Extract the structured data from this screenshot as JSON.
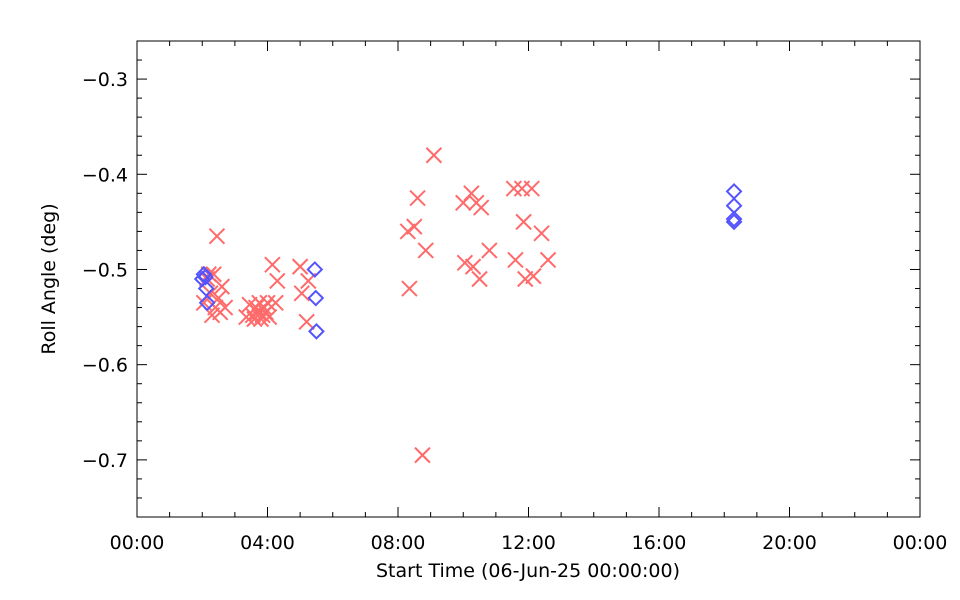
{
  "chart_data": {
    "type": "scatter",
    "title": "",
    "xlabel": "Start Time (06-Jun-25 00:00:00)",
    "ylabel": "Roll Angle (deg)",
    "x_units": "hours since 06-Jun-25 00:00:00",
    "xlim": [
      0,
      24
    ],
    "ylim": [
      -0.76,
      -0.26
    ],
    "x_ticks": [
      0,
      4,
      8,
      12,
      16,
      20,
      24
    ],
    "x_tick_labels": [
      "00:00",
      "04:00",
      "08:00",
      "12:00",
      "16:00",
      "20:00",
      "00:00"
    ],
    "y_ticks": [
      -0.7,
      -0.6,
      -0.5,
      -0.4,
      -0.3
    ],
    "y_tick_labels": [
      "−0.7",
      "−0.6",
      "−0.5",
      "−0.4",
      "−0.3"
    ],
    "grid": false,
    "series": [
      {
        "marker": "cross",
        "color": "#ff6a6a",
        "points": [
          [
            2.05,
            -0.535
          ],
          [
            2.15,
            -0.51
          ],
          [
            2.2,
            -0.505
          ],
          [
            2.25,
            -0.525
          ],
          [
            2.3,
            -0.548
          ],
          [
            2.35,
            -0.505
          ],
          [
            2.4,
            -0.54
          ],
          [
            2.45,
            -0.465
          ],
          [
            2.5,
            -0.53
          ],
          [
            2.55,
            -0.545
          ],
          [
            2.6,
            -0.518
          ],
          [
            2.7,
            -0.54
          ],
          [
            3.35,
            -0.55
          ],
          [
            3.45,
            -0.537
          ],
          [
            3.55,
            -0.548
          ],
          [
            3.6,
            -0.552
          ],
          [
            3.65,
            -0.54
          ],
          [
            3.7,
            -0.545
          ],
          [
            3.75,
            -0.535
          ],
          [
            3.8,
            -0.552
          ],
          [
            3.85,
            -0.548
          ],
          [
            3.9,
            -0.54
          ],
          [
            3.95,
            -0.545
          ],
          [
            4.0,
            -0.535
          ],
          [
            4.05,
            -0.55
          ],
          [
            4.15,
            -0.495
          ],
          [
            4.25,
            -0.535
          ],
          [
            4.3,
            -0.512
          ],
          [
            5.0,
            -0.497
          ],
          [
            5.05,
            -0.525
          ],
          [
            5.2,
            -0.555
          ],
          [
            5.25,
            -0.512
          ],
          [
            8.3,
            -0.46
          ],
          [
            8.35,
            -0.52
          ],
          [
            8.5,
            -0.455
          ],
          [
            8.6,
            -0.425
          ],
          [
            8.75,
            -0.695
          ],
          [
            8.85,
            -0.48
          ],
          [
            9.1,
            -0.38
          ],
          [
            10.0,
            -0.43
          ],
          [
            10.05,
            -0.493
          ],
          [
            10.25,
            -0.42
          ],
          [
            10.3,
            -0.497
          ],
          [
            10.4,
            -0.43
          ],
          [
            10.5,
            -0.51
          ],
          [
            10.55,
            -0.435
          ],
          [
            10.8,
            -0.48
          ],
          [
            11.55,
            -0.415
          ],
          [
            11.6,
            -0.49
          ],
          [
            11.8,
            -0.415
          ],
          [
            11.85,
            -0.45
          ],
          [
            11.9,
            -0.51
          ],
          [
            12.1,
            -0.415
          ],
          [
            12.15,
            -0.507
          ],
          [
            12.4,
            -0.462
          ],
          [
            12.6,
            -0.49
          ]
        ]
      },
      {
        "marker": "diamond",
        "color": "#5454ff",
        "points": [
          [
            2.0,
            -0.51
          ],
          [
            2.05,
            -0.505
          ],
          [
            2.1,
            -0.508
          ],
          [
            2.12,
            -0.52
          ],
          [
            2.15,
            -0.535
          ],
          [
            5.45,
            -0.5
          ],
          [
            5.48,
            -0.53
          ],
          [
            5.5,
            -0.565
          ],
          [
            18.3,
            -0.418
          ],
          [
            18.3,
            -0.433
          ],
          [
            18.3,
            -0.447
          ],
          [
            18.3,
            -0.45
          ]
        ]
      }
    ]
  }
}
